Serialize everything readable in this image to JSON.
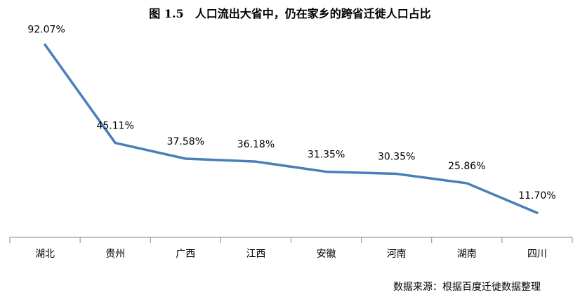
{
  "chart_data": {
    "type": "line",
    "title": "图 1.5　人口流出大省中，仍在家乡的跨省迁徙人口占比",
    "xlabel": "",
    "ylabel": "",
    "categories": [
      "湖北",
      "贵州",
      "广西",
      "江西",
      "安徽",
      "河南",
      "湖南",
      "四川"
    ],
    "series": [
      {
        "values": [
          92.07,
          45.11,
          37.58,
          36.18,
          31.35,
          30.35,
          25.86,
          11.7
        ],
        "labels": [
          "92.07%",
          "45.11%",
          "37.58%",
          "36.18%",
          "31.35%",
          "30.35%",
          "25.86%",
          "11.70%"
        ],
        "color": "#4a7ebb"
      }
    ],
    "ylim": [
      0,
      100
    ],
    "grid": false,
    "legend": "none",
    "source": "数据来源：根据百度迁徙数据整理"
  }
}
